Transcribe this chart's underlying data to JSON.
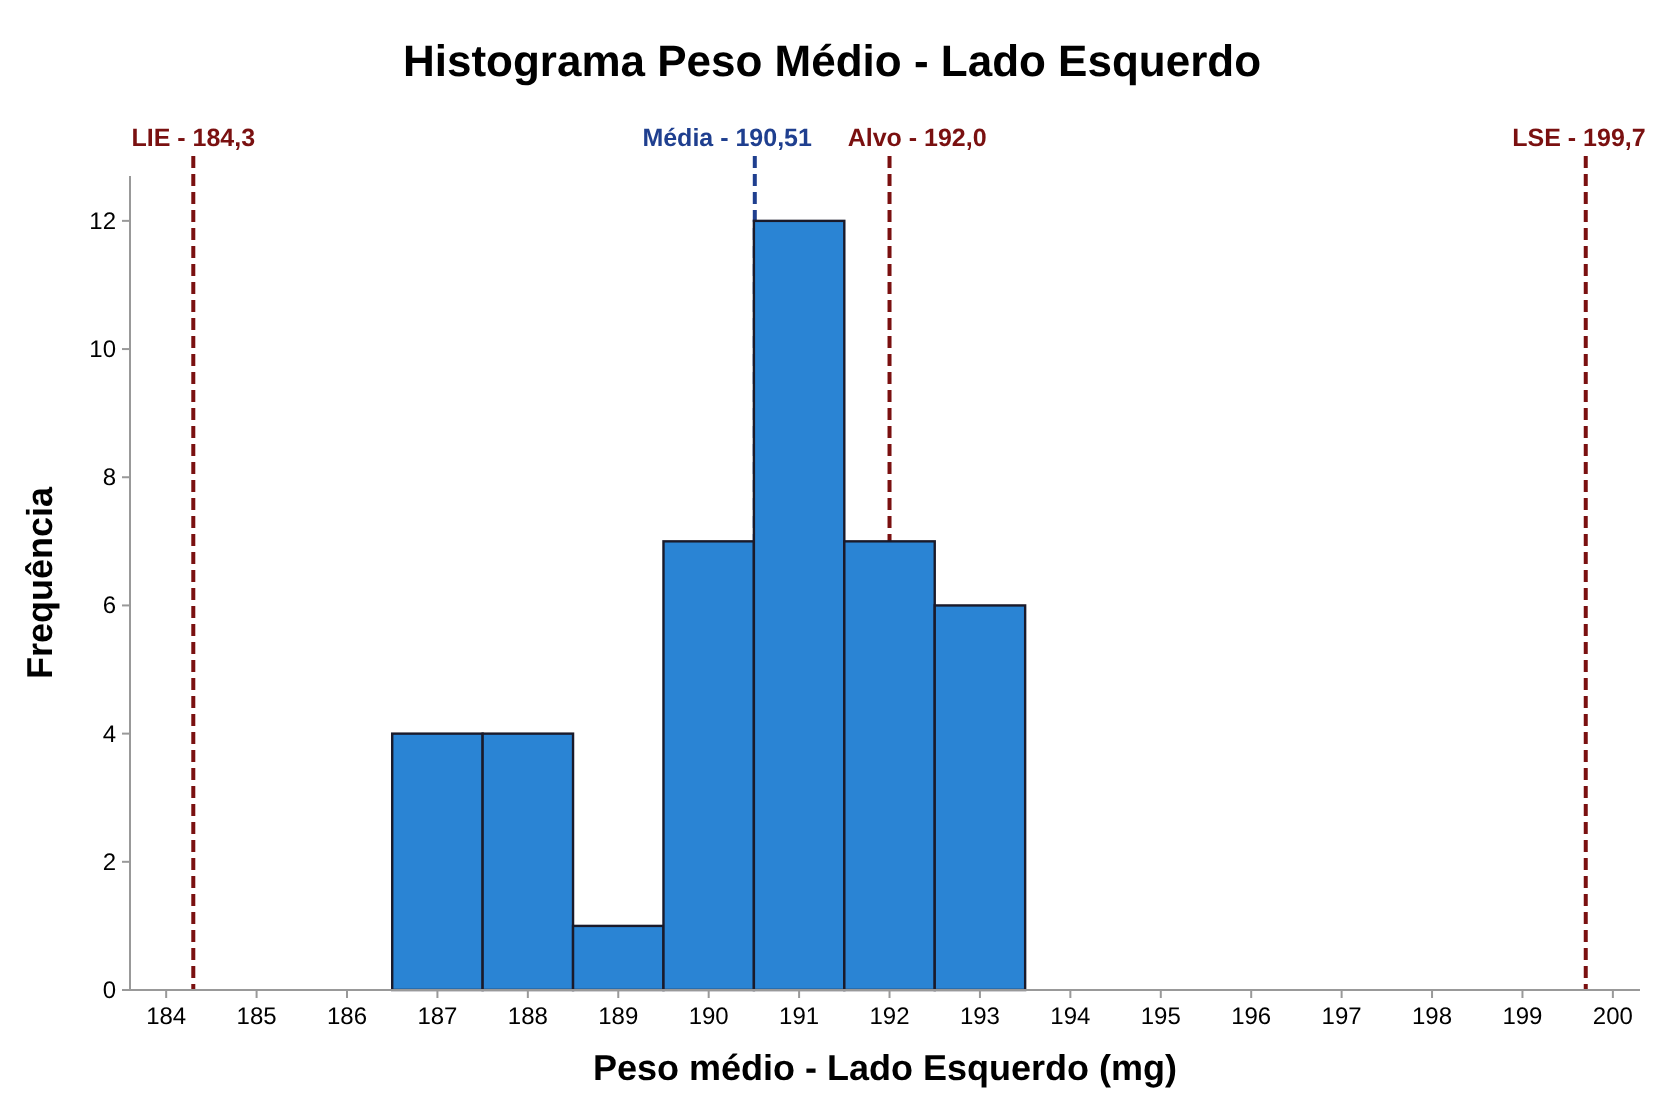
{
  "chart_data": {
    "type": "histogram",
    "title": "Histograma Peso Médio - Lado Esquerdo",
    "xlabel": "Peso médio - Lado Esquerdo (mg)",
    "ylabel": "Frequência",
    "bins": [
      186.5,
      187.5,
      188.5,
      189.5,
      190.5,
      191.5,
      192.5,
      193.5
    ],
    "values": [
      4,
      4,
      1,
      7,
      12,
      7,
      6
    ],
    "color": "#2a84d4",
    "xlim": [
      183.6,
      200.3
    ],
    "xticks": [
      184,
      185,
      186,
      187,
      188,
      189,
      190,
      191,
      192,
      193,
      194,
      195,
      196,
      197,
      198,
      199,
      200
    ],
    "ylim": [
      0,
      12.7
    ],
    "yticks": [
      0,
      2,
      4,
      6,
      8,
      10,
      12
    ],
    "grid": false,
    "ref_lines": [
      {
        "axis": "x",
        "value": 184.3,
        "label": "LIE - 184,3",
        "color": "#7a1010",
        "line_style": "dashed"
      },
      {
        "axis": "x",
        "value": 190.51,
        "label": "Média - 190,51",
        "color": "#1f3f8f",
        "line_style": "dashed"
      },
      {
        "axis": "x",
        "value": 192.0,
        "label": "Alvo - 192,0",
        "color": "#7a1010",
        "line_style": "dashed"
      },
      {
        "axis": "x",
        "value": 199.7,
        "label": "LSE - 199,7",
        "color": "#7a1010",
        "line_style": "dashed"
      }
    ]
  }
}
